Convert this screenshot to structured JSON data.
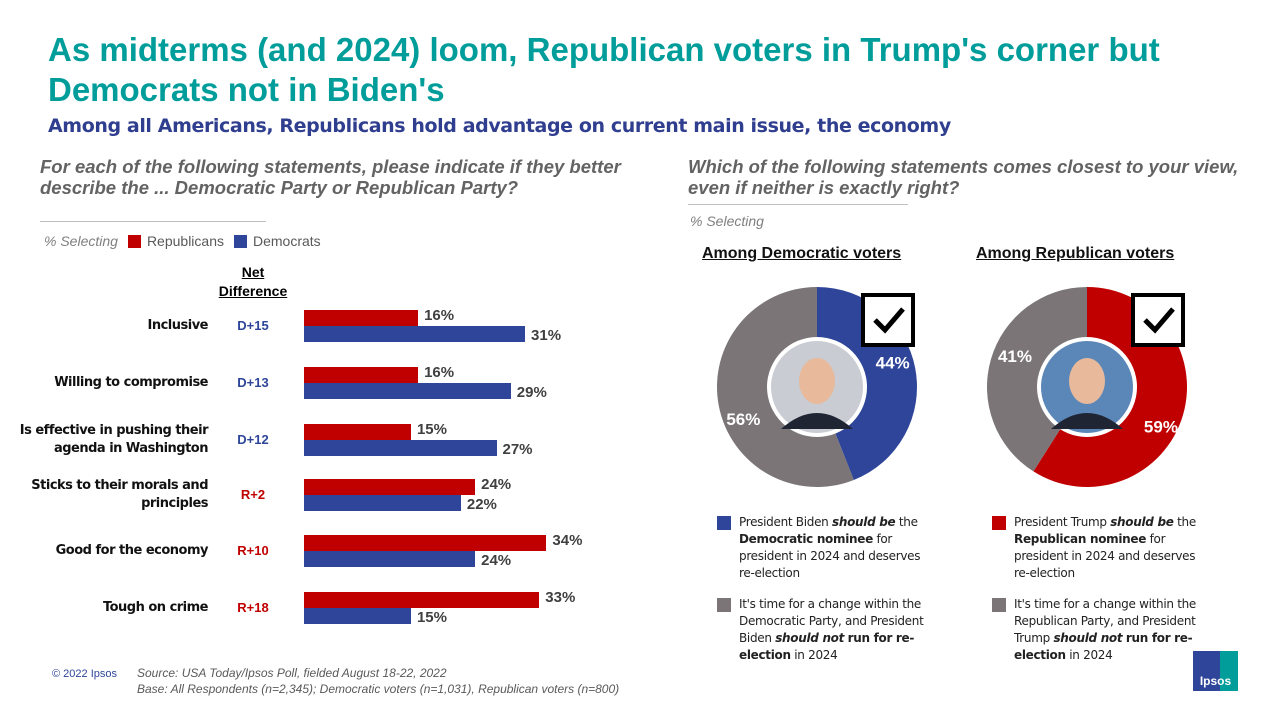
{
  "title": "As midterms (and 2024) loom, Republican voters in Trump's corner but Democrats not in Biden's",
  "subtitle": "Among all Americans, Republicans hold advantage on current main issue, the economy",
  "left": {
    "question": "For each of the following statements, please indicate if they better describe the ... Democratic Party or Republican Party?",
    "selecting": "% Selecting",
    "net_header": "Net Difference"
  },
  "right": {
    "question": "Which of the following statements comes closest to your view, even if neither is exactly right?",
    "selecting": "% Selecting"
  },
  "colors": {
    "republican": "#c00000",
    "democrat": "#2e4599",
    "gray": "#7b7577",
    "teal": "#009d9a"
  },
  "chart_data": [
    {
      "type": "bar",
      "orientation": "horizontal",
      "categories": [
        "Inclusive",
        "Willing to compromise",
        "Is effective in pushing their agenda in Washington",
        "Sticks to their morals and principles",
        "Good for the economy",
        "Tough on crime"
      ],
      "net_difference": [
        "D+15",
        "D+13",
        "D+12",
        "R+2",
        "R+10",
        "R+18"
      ],
      "series": [
        {
          "name": "Republicans",
          "values": [
            16,
            16,
            15,
            24,
            34,
            33
          ],
          "labels": [
            "16%",
            "16%",
            "15%",
            "24%",
            "34%",
            "33%"
          ]
        },
        {
          "name": "Democrats",
          "values": [
            31,
            29,
            27,
            22,
            24,
            15
          ],
          "labels": [
            "31%",
            "29%",
            "27%",
            "22%",
            "24%",
            "15%"
          ]
        }
      ],
      "legend": "top-left"
    },
    {
      "type": "pie",
      "donut": true,
      "title": "Among Democratic voters",
      "slices": [
        {
          "label": "President Biden should be the Democratic nominee for president in 2024 and deserves re-election",
          "value": 44,
          "text": "44%"
        },
        {
          "label": "It's time for a change within the Democratic Party, and President Biden should not run for re-election in 2024",
          "value": 56,
          "text": "56%"
        }
      ]
    },
    {
      "type": "pie",
      "donut": true,
      "title": "Among Republican voters",
      "slices": [
        {
          "label": "President Trump should be the Republican nominee for president in 2024 and deserves re-election",
          "value": 59,
          "text": "59%"
        },
        {
          "label": "It's time for a change within the Republican Party, and President Trump should not run for re-election in 2024",
          "value": 41,
          "text": "41%"
        }
      ]
    }
  ],
  "legends": {
    "dem": [
      {
        "pre": "President Biden ",
        "em": "should be",
        "post": " the ",
        "bold": "Democratic nominee",
        "tail": " for president in 2024 and deserves re-election"
      },
      {
        "pre": "It’s time for a change within the Democratic Party, and President Biden ",
        "em": "should not",
        "post": "",
        "bold": " run for re-election",
        "tail": " in 2024"
      }
    ],
    "rep": [
      {
        "pre": "President Trump ",
        "em": "should be",
        "post": " the ",
        "bold": "Republican nominee",
        "tail": " for president in 2024 and deserves re-election"
      },
      {
        "pre": "It’s time for a change within the Republican Party, and President Trump ",
        "em": "should not",
        "post": "",
        "bold": " run for re-election",
        "tail": " in 2024"
      }
    ]
  },
  "footer": {
    "copyright": "© 2022 Ipsos",
    "source": "Source: USA Today/Ipsos Poll, fielded August 18-22, 2022",
    "base": "Base: All Respondents (n=2,345); Democratic voters (n=1,031), Republican voters (n=800)",
    "logo": "Ipsos"
  }
}
